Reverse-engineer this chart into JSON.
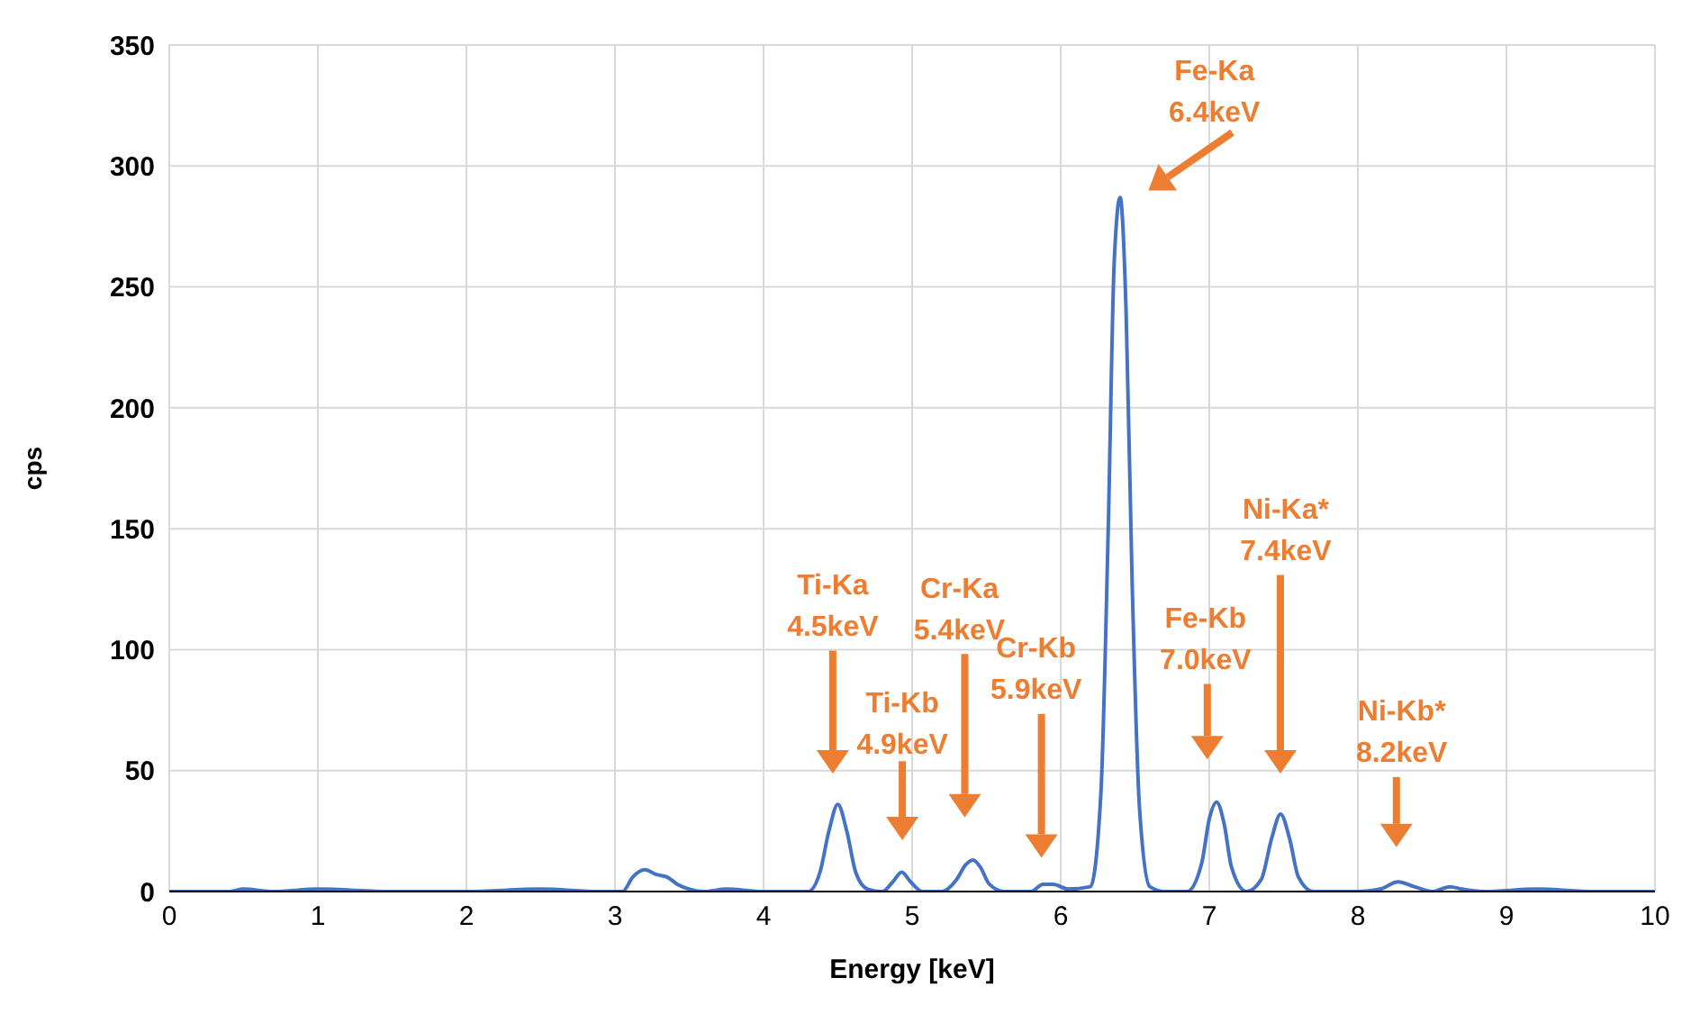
{
  "chart_data": {
    "type": "line",
    "xlabel": "Energy [keV]",
    "ylabel": "cps",
    "xlim": [
      0,
      10
    ],
    "xticks": [
      0,
      1,
      2,
      3,
      4,
      5,
      6,
      7,
      8,
      9,
      10
    ],
    "ylim": [
      0,
      350
    ],
    "yticks": [
      0,
      50,
      100,
      150,
      200,
      250,
      300,
      350
    ],
    "grid": true,
    "marker": "none",
    "line_style": "solid",
    "series": [
      {
        "color": "#4472c4",
        "x": [
          0,
          0.4,
          0.5,
          0.7,
          1.0,
          1.5,
          2.0,
          2.5,
          2.9,
          3.05,
          3.12,
          3.2,
          3.28,
          3.35,
          3.42,
          3.5,
          3.6,
          3.75,
          4.0,
          4.3,
          4.38,
          4.44,
          4.5,
          4.56,
          4.62,
          4.7,
          4.8,
          4.87,
          4.93,
          4.99,
          5.07,
          5.2,
          5.3,
          5.36,
          5.41,
          5.46,
          5.52,
          5.62,
          5.8,
          5.88,
          5.95,
          6.05,
          6.2,
          6.27,
          6.32,
          6.36,
          6.4,
          6.44,
          6.48,
          6.53,
          6.6,
          6.7,
          6.85,
          6.95,
          7.0,
          7.05,
          7.1,
          7.15,
          7.25,
          7.35,
          7.42,
          7.48,
          7.54,
          7.6,
          7.7,
          8.0,
          8.15,
          8.27,
          8.38,
          8.5,
          8.62,
          8.7,
          8.85,
          9.2,
          9.6,
          10
        ],
        "values": [
          0,
          0,
          1,
          0,
          1,
          0,
          0,
          1,
          0,
          0,
          6,
          9,
          7,
          6,
          3,
          1,
          0,
          1,
          0,
          0,
          8,
          25,
          36,
          25,
          8,
          1,
          0,
          4,
          8,
          4,
          0,
          0,
          5,
          11,
          13,
          10,
          3,
          0,
          0,
          3,
          3,
          1,
          2,
          40,
          150,
          260,
          287,
          240,
          130,
          35,
          2,
          0,
          0,
          12,
          30,
          37,
          28,
          10,
          0,
          5,
          22,
          32,
          22,
          6,
          0,
          0,
          1,
          4,
          2,
          0,
          2,
          1,
          0,
          1,
          0,
          0
        ]
      }
    ],
    "annotations": [
      "Ti-Ka 4.5keV",
      "Ti-Kb 4.9keV",
      "Cr-Ka 5.4keV",
      "Cr-Kb 5.9keV",
      "Fe-Ka 6.4keV",
      "Fe-Kb 7.0keV",
      "Ni-Ka* 7.4keV",
      "Ni-Kb* 8.2keV"
    ]
  }
}
